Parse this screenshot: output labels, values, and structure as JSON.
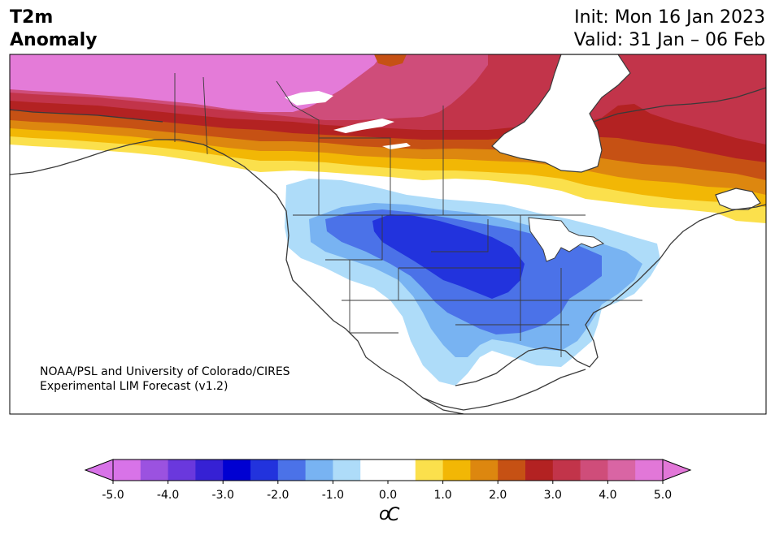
{
  "header": {
    "title_line1": "T2m",
    "title_line2": "Anomaly",
    "init": "Init: Mon 16 Jan 2023",
    "valid": "Valid: 31 Jan – 06 Feb"
  },
  "credit": {
    "line1": "NOAA/PSL and University of Colorado/CIRES",
    "line2": "Experimental LIM Forecast (v1.2)"
  },
  "colorbar": {
    "unit_label_sup": "o",
    "unit_label": "C",
    "tick_labels": [
      "-5.0",
      "-4.0",
      "-3.0",
      "-2.0",
      "-1.0",
      "0.0",
      "1.0",
      "2.0",
      "3.0",
      "4.0",
      "5.0"
    ],
    "colors": [
      "#d873e8",
      "#9b52e0",
      "#6a38dd",
      "#3621d4",
      "#0000d2",
      "#2233dd",
      "#4b72e8",
      "#78b3f2",
      "#aedcf9",
      "#ffffff",
      "#ffffff",
      "#fbe04c",
      "#f2b705",
      "#dd870f",
      "#c65114",
      "#b32222",
      "#c2344a",
      "#cf4d7a",
      "#d965a4",
      "#e277d8"
    ],
    "extend_low_color": "#d873e8",
    "extend_high_color": "#e277d8"
  },
  "map": {
    "region": "North America",
    "colors": {
      "strong_warm": "#e47bd8",
      "warm4": "#cf4d7a",
      "warm3": "#c2344a",
      "warm3b": "#b32222",
      "warm2": "#c65114",
      "warm2b": "#dd870f",
      "warm1": "#f2b705",
      "warm05": "#fbe04c",
      "cold05": "#aedcf9",
      "cold1": "#78b3f2",
      "cold15": "#4b72e8",
      "cold2": "#2233dd",
      "coast": "#3a3a3a"
    }
  }
}
